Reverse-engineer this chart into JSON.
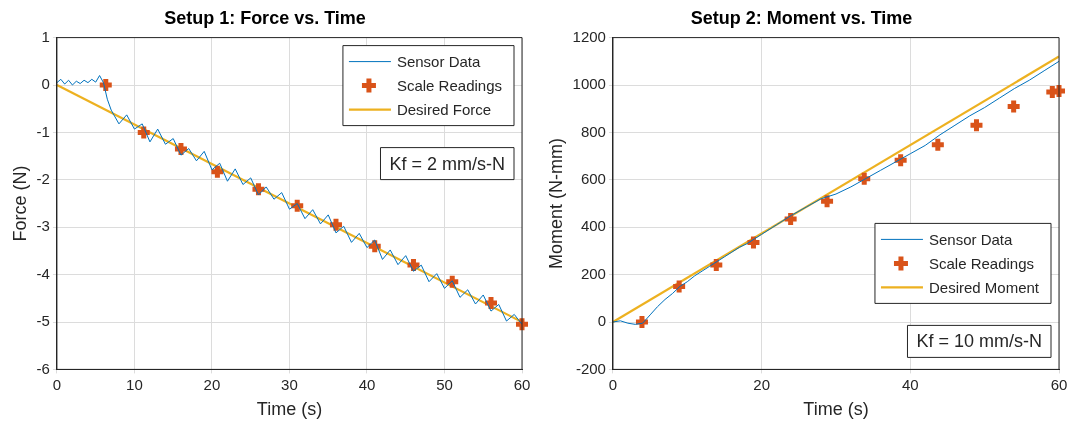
{
  "chart_data": [
    {
      "type": "line",
      "title": "Setup 1: Force vs. Time",
      "xlabel": "Time (s)",
      "ylabel": "Force (N)",
      "xlim": [
        0,
        60
      ],
      "xticks": [
        0,
        10,
        20,
        30,
        40,
        50,
        60
      ],
      "ylim": [
        -6,
        1
      ],
      "yticks": [
        -6,
        -5,
        -4,
        -3,
        -2,
        -1,
        0,
        1
      ],
      "grid": true,
      "legend": "top right",
      "annotations": [
        "Kf = 2 mm/s-N"
      ],
      "series": [
        {
          "name": "Sensor Data",
          "type": "line",
          "color": "#0072bd",
          "marker": "none",
          "x": [
            0,
            0.5,
            1,
            1.5,
            2,
            2.5,
            3,
            3.5,
            4,
            4.5,
            5,
            5.5,
            6,
            6.5,
            7,
            8,
            9,
            10,
            11,
            12,
            13,
            14,
            15,
            16,
            17,
            18,
            19,
            20,
            21,
            22,
            23,
            24,
            25,
            26,
            27,
            28,
            29,
            30,
            31,
            32,
            33,
            34,
            35,
            36,
            37,
            38,
            39,
            40,
            41,
            42,
            43,
            44,
            45,
            46,
            47,
            48,
            49,
            50,
            51,
            52,
            53,
            54,
            55,
            56,
            57,
            58,
            59,
            60
          ],
          "values": [
            0.05,
            0.12,
            0.02,
            0.1,
            0,
            0.08,
            0.03,
            0.1,
            0.05,
            0.12,
            0.06,
            0.2,
            0.05,
            -0.3,
            -0.53,
            -0.82,
            -0.63,
            -0.93,
            -0.82,
            -1.2,
            -0.93,
            -1.25,
            -1.13,
            -1.48,
            -1.34,
            -1.6,
            -1.4,
            -1.79,
            -1.65,
            -2.03,
            -1.77,
            -2.1,
            -1.96,
            -2.32,
            -2.15,
            -2.41,
            -2.27,
            -2.62,
            -2.5,
            -2.82,
            -2.63,
            -2.93,
            -2.74,
            -3.12,
            -2.98,
            -3.32,
            -3.13,
            -3.43,
            -3.27,
            -3.68,
            -3.48,
            -3.79,
            -3.6,
            -3.93,
            -3.8,
            -4.15,
            -3.98,
            -4.29,
            -4.13,
            -4.48,
            -4.32,
            -4.62,
            -4.43,
            -4.77,
            -4.63,
            -4.98,
            -4.84,
            -5.05
          ]
        },
        {
          "name": "Scale Readings",
          "type": "scatter",
          "color": "#d95319",
          "marker": "cross",
          "x": [
            6.3,
            11.2,
            16,
            20.7,
            26,
            31,
            36,
            41,
            46,
            51,
            56,
            60
          ],
          "values": [
            0,
            -1,
            -1.35,
            -1.83,
            -2.2,
            -2.55,
            -2.95,
            -3.4,
            -3.8,
            -4.15,
            -4.6,
            -5.05
          ]
        },
        {
          "name": "Desired Force",
          "type": "line",
          "color": "#edb120",
          "marker": "none",
          "x": [
            0,
            60
          ],
          "values": [
            0,
            -5
          ]
        }
      ]
    },
    {
      "type": "line",
      "title": "Setup 2: Moment vs. Time",
      "xlabel": "Time (s)",
      "ylabel": "Moment (N-mm)",
      "xlim": [
        0,
        60
      ],
      "xticks": [
        0,
        20,
        40,
        60
      ],
      "ylim": [
        -200,
        1200
      ],
      "yticks": [
        -200,
        0,
        200,
        400,
        600,
        800,
        1000,
        1200
      ],
      "grid": true,
      "legend": "bottom right",
      "annotations": [
        "Kf = 10 mm/s-N"
      ],
      "series": [
        {
          "name": "Sensor Data",
          "type": "line",
          "color": "#0072bd",
          "marker": "none",
          "x": [
            0,
            1,
            2,
            3,
            4,
            5,
            6,
            7,
            8,
            9,
            10,
            11,
            12,
            13,
            14,
            15,
            16,
            17,
            18,
            19,
            20,
            22,
            24,
            26,
            28,
            30,
            32,
            34,
            36,
            38,
            40,
            42,
            44,
            46,
            48,
            50,
            52,
            54,
            56,
            58,
            60
          ],
          "values": [
            0,
            5,
            -5,
            -10,
            -5,
            30,
            65,
            95,
            120,
            150,
            170,
            195,
            215,
            235,
            255,
            275,
            295,
            315,
            330,
            350,
            370,
            410,
            450,
            485,
            520,
            540,
            570,
            605,
            640,
            675,
            710,
            745,
            790,
            830,
            870,
            905,
            945,
            985,
            1020,
            1060,
            1100
          ]
        },
        {
          "name": "Scale Readings",
          "type": "scatter",
          "color": "#d95319",
          "marker": "cross",
          "x": [
            3.9,
            8.9,
            13.9,
            18.9,
            23.9,
            28.8,
            33.8,
            38.7,
            43.7,
            48.9,
            53.9,
            59.1,
            60
          ],
          "values": [
            0,
            150,
            240,
            335,
            435,
            510,
            604,
            683,
            748,
            830,
            909,
            970,
            975
          ]
        },
        {
          "name": "Desired Moment",
          "type": "line",
          "color": "#edb120",
          "marker": "none",
          "x": [
            0,
            60
          ],
          "values": [
            0,
            1120
          ]
        }
      ]
    }
  ]
}
